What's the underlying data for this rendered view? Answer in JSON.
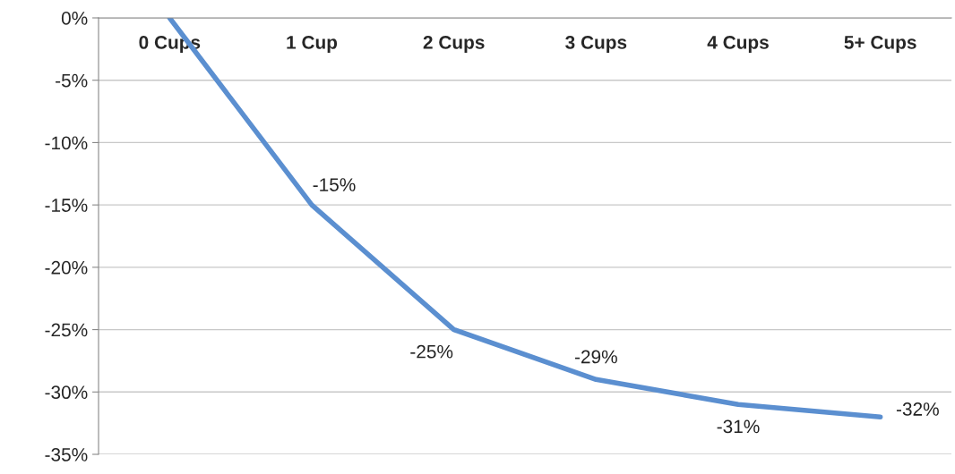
{
  "chart_data": {
    "type": "line",
    "categories": [
      "0 Cups",
      "1 Cup",
      "2 Cups",
      "3 Cups",
      "4 Cups",
      "5+ Cups"
    ],
    "series": [
      {
        "color": "#5b8fd0",
        "values": [
          0,
          -15,
          -25,
          -29,
          -31,
          -32
        ],
        "value_labels": [
          null,
          "-15%",
          "-25%",
          "-29%",
          "-31%",
          "-32%"
        ]
      }
    ],
    "ylim": [
      -35,
      0
    ],
    "yticks": [
      {
        "value": 0,
        "label": "0%"
      },
      {
        "value": -5,
        "label": "-5%"
      },
      {
        "value": -10,
        "label": "-10%"
      },
      {
        "value": -15,
        "label": "-15%"
      },
      {
        "value": -20,
        "label": "-20%"
      },
      {
        "value": -25,
        "label": "-25%"
      },
      {
        "value": -30,
        "label": "-30%"
      },
      {
        "value": -35,
        "label": "-35%"
      }
    ],
    "grid": "y",
    "legend": false,
    "marker": "none",
    "line_style": "solid"
  }
}
